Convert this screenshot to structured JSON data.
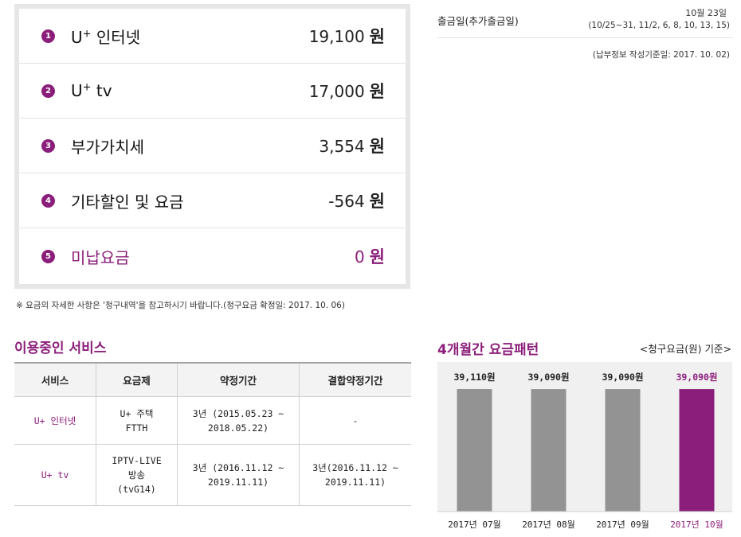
{
  "bill": {
    "items": [
      {
        "num": "1",
        "label": "U",
        "sup": "+",
        "label_rest": " 인터넷",
        "amount": "19,100",
        "unit": "원"
      },
      {
        "num": "2",
        "label": "U",
        "sup": "+",
        "label_rest": " tv",
        "amount": "17,000",
        "unit": "원"
      },
      {
        "num": "3",
        "label": "부가가치세",
        "sup": "",
        "label_rest": "",
        "amount": "3,554",
        "unit": "원"
      },
      {
        "num": "4",
        "label": "기타할인 및 요금",
        "sup": "",
        "label_rest": "",
        "amount": "-564",
        "unit": "원"
      },
      {
        "num": "5",
        "label": "미납요금",
        "sup": "",
        "label_rest": "",
        "amount": "0",
        "unit": "원"
      }
    ],
    "notice": "※ 요금의 자세한 사항은 '청구내역'을 참고하시기 바랍니다.(청구요금 확정일: 2017. 10. 06)"
  },
  "withdrawal": {
    "label": "출금일(추가출금일)",
    "date": "10월 23일",
    "extra_dates": "(10/25~31, 11/2, 6, 8, 10, 13, 15)",
    "reference": "(납부정보 작성기준일: 2017. 10. 02)"
  },
  "services": {
    "title": "이용중인 서비스",
    "columns": [
      "서비스",
      "요금제",
      "약정기간",
      "결합약정기간"
    ],
    "rows": [
      {
        "service": "U+ 인터넷",
        "plan_lines": [
          "U+ 주택",
          "FTTH"
        ],
        "contract_lines": [
          "3년 (2015.05.23 ~",
          "2018.05.22)"
        ],
        "bundle_lines": [
          "-"
        ]
      },
      {
        "service": "U+ tv",
        "plan_lines": [
          "IPTV-LIVE",
          "방송",
          "(tvG14)"
        ],
        "contract_lines": [
          "3년 (2016.11.12 ~",
          "2019.11.11)"
        ],
        "bundle_lines": [
          "3년(2016.11.12 ~",
          "2019.11.11)"
        ]
      }
    ]
  },
  "pattern": {
    "title": "4개월간 요금패턴",
    "unit_note": "<청구요금(원) 기준>"
  },
  "chart_data": {
    "type": "bar",
    "categories": [
      "2017년 07월",
      "2017년 08월",
      "2017년 09월",
      "2017년 10월"
    ],
    "values": [
      39110,
      39090,
      39090,
      39090
    ],
    "value_labels": [
      "39,110원",
      "39,090원",
      "39,090원",
      "39,090원"
    ],
    "colors": [
      "#939393",
      "#939393",
      "#939393",
      "#8b1e7a"
    ],
    "highlight_label_color": "#8b1e7a"
  },
  "colors": {
    "accent": "#8b1e7a",
    "bar_gray": "#939393"
  }
}
